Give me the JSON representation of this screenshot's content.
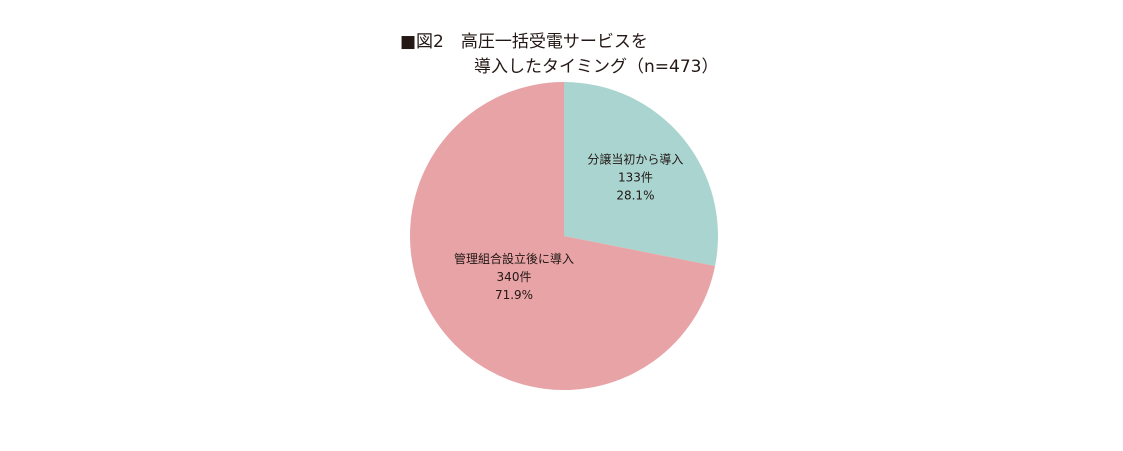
{
  "chart_data": {
    "type": "pie",
    "title_line1": "■図2　高圧一括受電サービスを",
    "title_line2": "導入したタイミング（n=473）",
    "slices": [
      {
        "label": "分譲当初から導入",
        "count_text": "133件",
        "percent_text": "28.1%",
        "value": 133,
        "percent": 28.1,
        "color": "#a9d4cf"
      },
      {
        "label": "管理組合設立後に導入",
        "count_text": "340件",
        "percent_text": "71.9%",
        "value": 340,
        "percent": 71.9,
        "color": "#e7a3a6"
      }
    ],
    "start": "12 o'clock",
    "direction": "clockwise"
  }
}
